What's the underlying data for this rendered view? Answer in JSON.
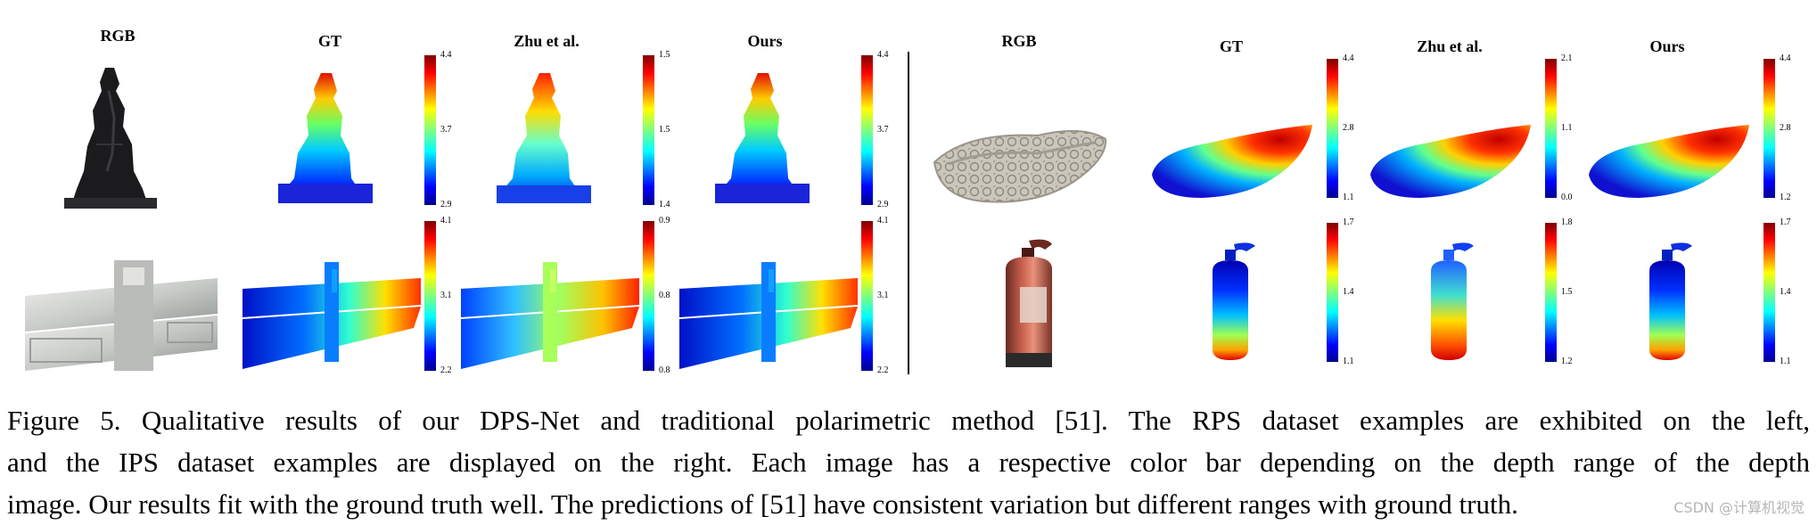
{
  "left_panel": {
    "headers": {
      "rgb": "RGB",
      "gt": "GT",
      "zhu": "Zhu et al.",
      "ours": "Ours"
    },
    "row1_ticks": {
      "gt": [
        "4.4",
        "3.7",
        "2.9"
      ],
      "zhu": [
        "1.5",
        "1.5",
        "1.4"
      ],
      "ours": [
        "4.4",
        "3.7",
        "2.9"
      ]
    },
    "row2_ticks": {
      "gt": [
        "4.1",
        "3.1",
        "2.2"
      ],
      "zhu": [
        "0.9",
        "0.8",
        "0.8"
      ],
      "ours": [
        "4.1",
        "3.1",
        "2.2"
      ]
    }
  },
  "right_panel": {
    "headers": {
      "rgb": "RGB",
      "gt": "GT",
      "zhu": "Zhu et al.",
      "ours": "Ours"
    },
    "row1_ticks": {
      "gt": [
        "4.4",
        "2.8",
        "1.1"
      ],
      "zhu": [
        "2.1",
        "1.1",
        "0.0"
      ],
      "ours": [
        "4.4",
        "2.8",
        "1.2"
      ]
    },
    "row2_ticks": {
      "gt": [
        "1.7",
        "1.4",
        "1.1"
      ],
      "zhu": [
        "1.8",
        "1.5",
        "1.2"
      ],
      "ours": [
        "1.7",
        "1.4",
        "1.1"
      ]
    }
  },
  "caption": {
    "line1": "Figure 5. Qualitative results of our DPS-Net and traditional polarimetric method [51]. The RPS dataset examples are exhibited on the left,",
    "line2": "and the IPS dataset examples are displayed on the right. Each image has a respective color bar depending on the depth range of the depth",
    "line3": "image. Our results fit with the ground truth well. The predictions of [51] have consistent variation but different ranges with ground truth."
  },
  "watermark": "CSDN @计算机视觉"
}
